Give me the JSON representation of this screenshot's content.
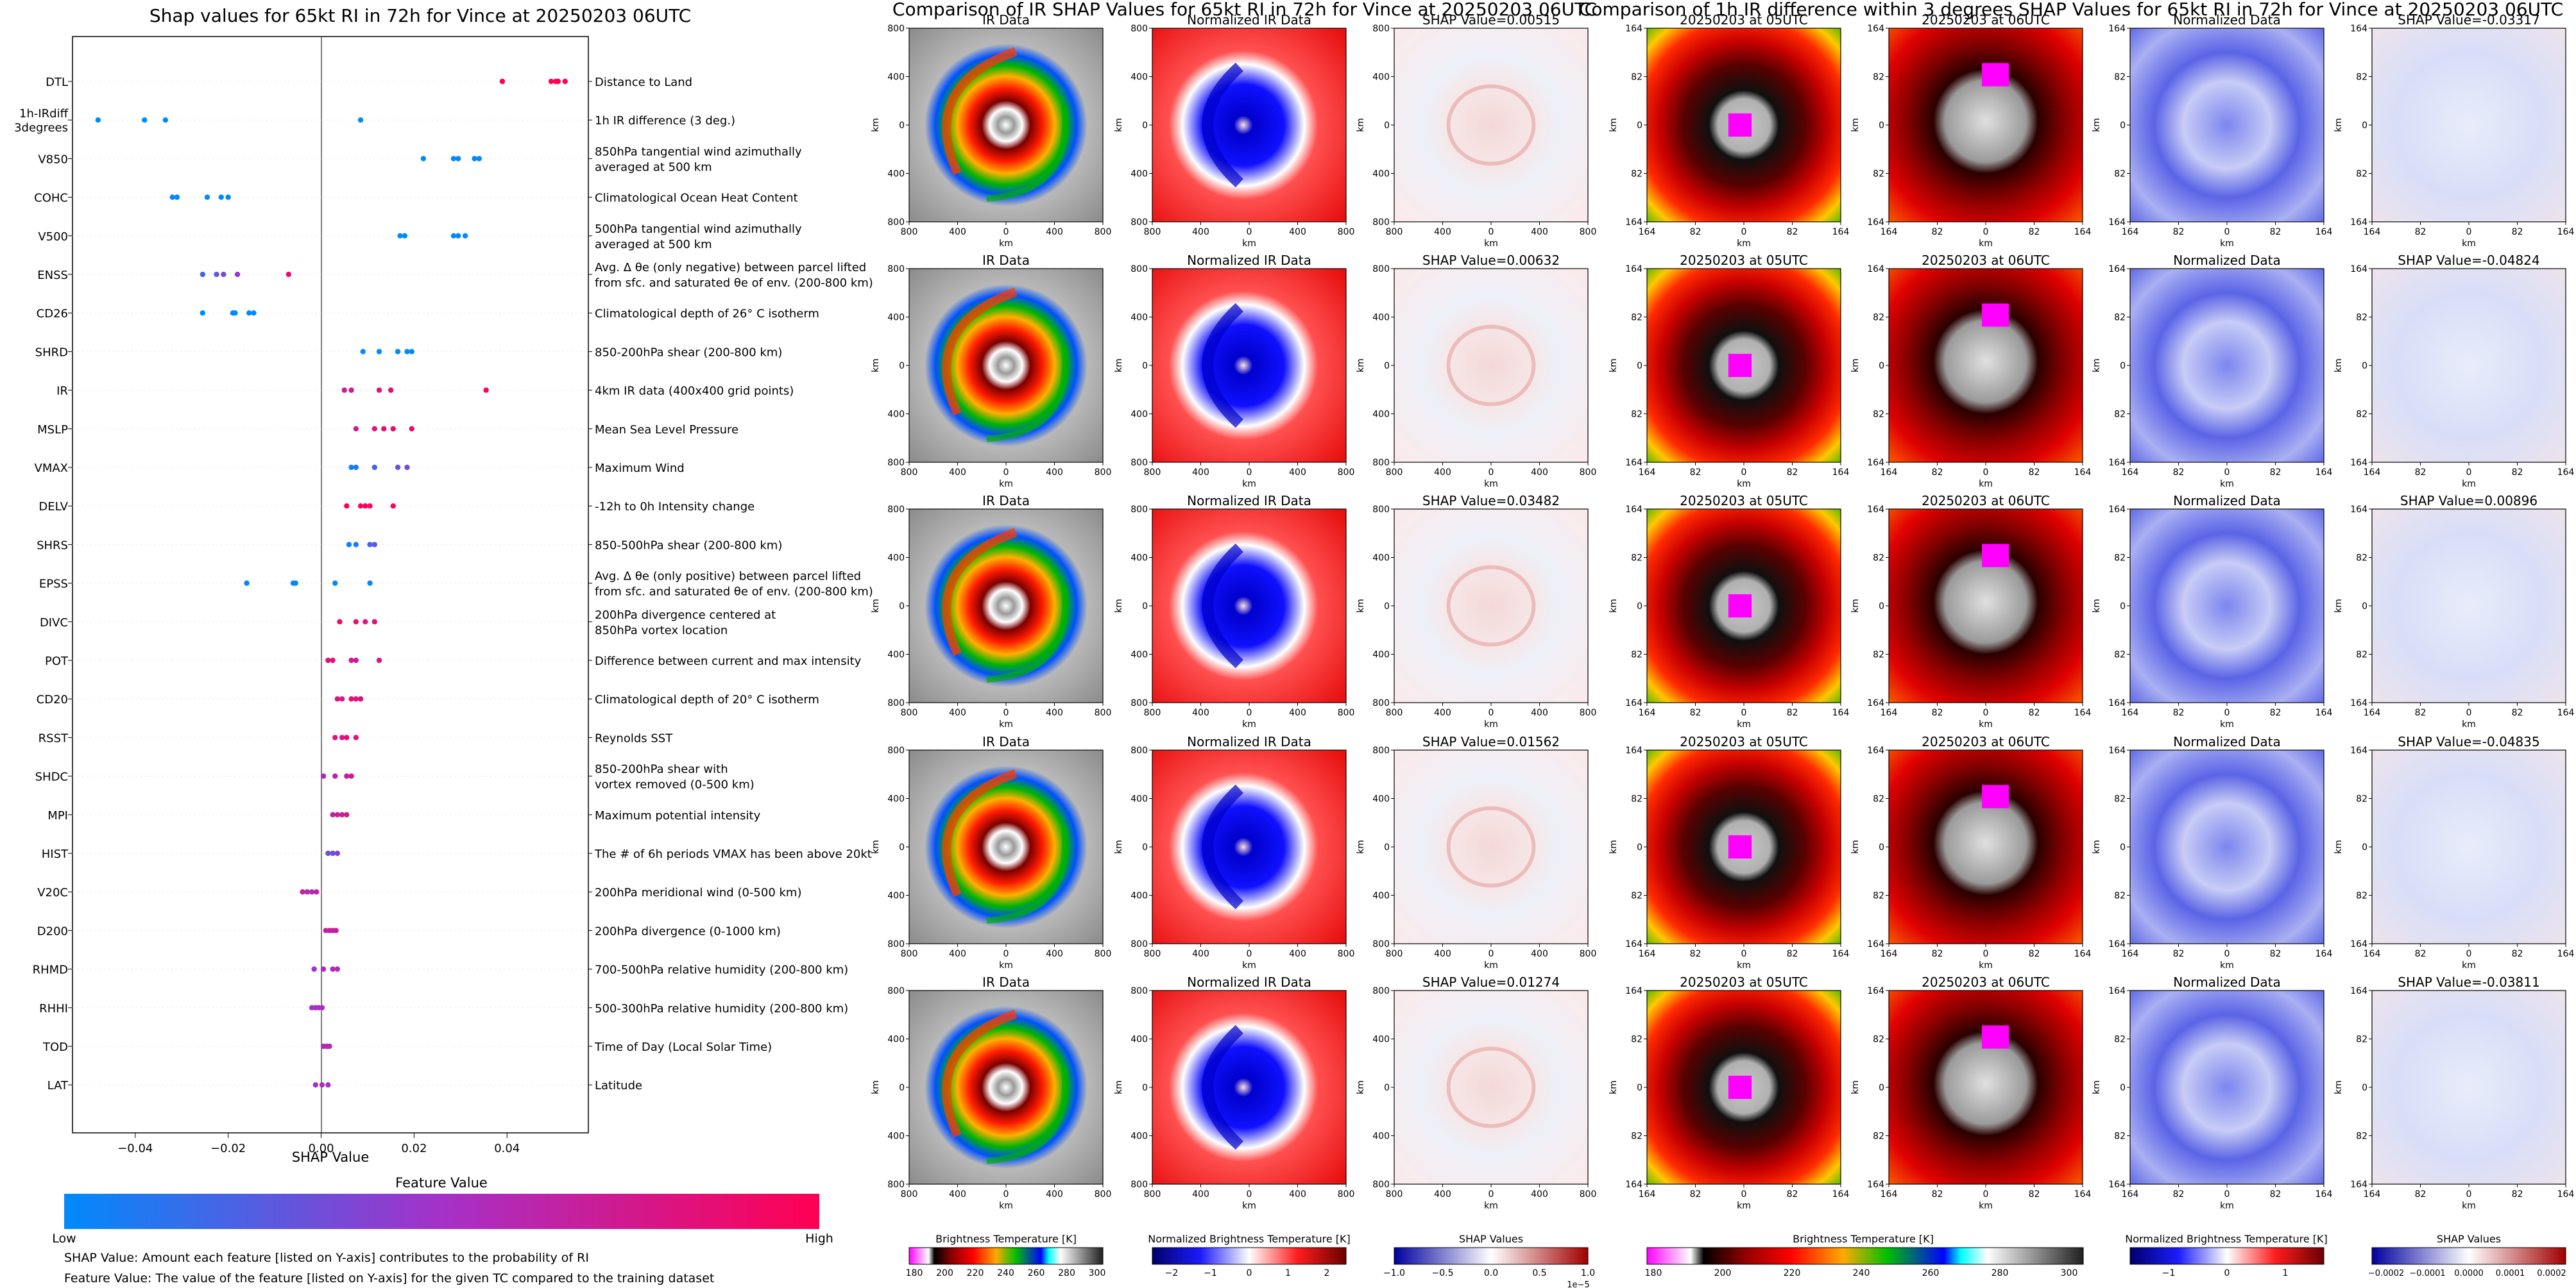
{
  "colors": {
    "feature_low": "#008afb",
    "feature_high": "#ff0052",
    "feature_mid": "#a531c8"
  },
  "shap_panel": {
    "title": "Shap values for 65kt RI in 72h for Vince at 20250203 06UTC",
    "xlabel": "SHAP Value",
    "colorbar_title": "Feature Value",
    "colorbar_low": "Low",
    "colorbar_high": "High",
    "note_1": "SHAP Value: Amount each feature [listed on Y-axis] contributes to the probability of RI",
    "note_2": "Feature Value: The value of the feature [listed on Y-axis] for the given TC compared to the training dataset"
  },
  "ir_panel": {
    "title": "Comparison of IR SHAP Values for 65kt RI in 72h for Vince at 20250203 06UTC",
    "col_titles": [
      "IR Data",
      "Normalized IR Data"
    ],
    "shap_titles": [
      "SHAP Value=0.00515",
      "SHAP Value=0.00632",
      "SHAP Value=0.03482",
      "SHAP Value=0.01562",
      "SHAP Value=0.01274"
    ],
    "axis_label": "km",
    "ticks": [
      "800",
      "400",
      "0",
      "400",
      "800"
    ],
    "cbar1_label": "Brightness Temperature [K]",
    "cbar1_ticks": [
      "180",
      "200",
      "220",
      "240",
      "260",
      "280",
      "300"
    ],
    "cbar2_label": "Normalized Brightness Temperature [K]",
    "cbar2_ticks": [
      "−2",
      "−1",
      "0",
      "1",
      "2"
    ],
    "cbar3_label": "SHAP Values",
    "cbar3_ticks": [
      "−1.0",
      "−0.5",
      "0.0",
      "0.5",
      "1.0"
    ],
    "cbar3_exp": "1e−5"
  },
  "diff_panel": {
    "title": "Comparison of 1h IR difference within 3 degrees SHAP Values for 65kt RI in 72h for Vince at 20250203 06UTC",
    "col_titles": [
      "20250203 at 05UTC",
      "20250203 at 06UTC",
      "Normalized Data"
    ],
    "shap_titles": [
      "SHAP Value=-0.03317",
      "SHAP Value=-0.04824",
      "SHAP Value=0.00896",
      "SHAP Value=-0.04835",
      "SHAP Value=-0.03811"
    ],
    "axis_label": "km",
    "ticks": [
      "164",
      "82",
      "0",
      "82",
      "164"
    ],
    "cbar1_label": "Brightness Temperature [K]",
    "cbar1_ticks": [
      "180",
      "200",
      "220",
      "240",
      "260",
      "280",
      "300"
    ],
    "cbar2_label": "Normalized Brightness Temperature [K]",
    "cbar2_ticks": [
      "−1",
      "0",
      "1"
    ],
    "cbar3_label": "SHAP Values",
    "cbar3_ticks": [
      "−0.0002",
      "−0.0001",
      "0.0000",
      "0.0001",
      "0.0002"
    ]
  },
  "chart_data": {
    "type": "scatter",
    "title": "Shap values for 65kt RI in 72h for Vince at 20250203 06UTC",
    "xlabel": "SHAP Value",
    "ylabel": "",
    "xlim": [
      -0.0535,
      0.0575
    ],
    "xticks": [
      -0.04,
      -0.02,
      0.0,
      0.02,
      0.04
    ],
    "xtick_labels": [
      "−0.04",
      "−0.02",
      "0.00",
      "0.02",
      "0.04"
    ],
    "grid": false,
    "features": [
      {
        "code": "DTL",
        "desc": [
          "Distance to Land"
        ],
        "points": [
          [
            0.039,
            1
          ],
          [
            0.0495,
            1
          ],
          [
            0.0505,
            1
          ],
          [
            0.051,
            1
          ],
          [
            0.0525,
            1
          ]
        ]
      },
      {
        "code": "1h-IRdiff|3degrees",
        "desc": [
          "1h IR difference (3 deg.)"
        ],
        "points": [
          [
            -0.048,
            0
          ],
          [
            -0.038,
            0
          ],
          [
            -0.0335,
            0
          ],
          [
            0.0085,
            0
          ]
        ]
      },
      {
        "code": "V850",
        "desc": [
          "850hPa tangential wind azimuthally",
          "averaged at 500 km"
        ],
        "points": [
          [
            0.022,
            0
          ],
          [
            0.0285,
            0
          ],
          [
            0.0295,
            0
          ],
          [
            0.033,
            0
          ],
          [
            0.034,
            0
          ]
        ]
      },
      {
        "code": "COHC",
        "desc": [
          "Climatological Ocean Heat Content"
        ],
        "points": [
          [
            -0.032,
            0
          ],
          [
            -0.031,
            0
          ],
          [
            -0.0245,
            0
          ],
          [
            -0.0215,
            0
          ],
          [
            -0.02,
            0
          ]
        ]
      },
      {
        "code": "V500",
        "desc": [
          "500hPa tangential wind azimuthally",
          "averaged at 500 km"
        ],
        "points": [
          [
            0.017,
            0
          ],
          [
            0.018,
            0
          ],
          [
            0.0285,
            0
          ],
          [
            0.0295,
            0
          ],
          [
            0.031,
            0
          ]
        ]
      },
      {
        "code": "ENSS",
        "desc": [
          "Avg. Δ θe (only negative) between parcel lifted",
          "from sfc. and saturated θe of env. (200-800 km)"
        ],
        "points": [
          [
            -0.0255,
            0.2
          ],
          [
            -0.0225,
            0.3
          ],
          [
            -0.021,
            0.35
          ],
          [
            -0.018,
            0.45
          ],
          [
            -0.007,
            0.85
          ]
        ]
      },
      {
        "code": "CD26",
        "desc": [
          "Climatological depth of 26° C isotherm"
        ],
        "points": [
          [
            -0.0255,
            0
          ],
          [
            -0.019,
            0
          ],
          [
            -0.0185,
            0
          ],
          [
            -0.0155,
            0
          ],
          [
            -0.0145,
            0
          ]
        ]
      },
      {
        "code": "SHRD",
        "desc": [
          "850-200hPa shear (200-800 km)"
        ],
        "points": [
          [
            0.009,
            0
          ],
          [
            0.0125,
            0
          ],
          [
            0.0165,
            0
          ],
          [
            0.0185,
            0
          ],
          [
            0.0195,
            0
          ]
        ]
      },
      {
        "code": "IR",
        "desc": [
          "4km IR data (400x400 grid points)"
        ],
        "points": [
          [
            0.005,
            0.7
          ],
          [
            0.0065,
            0.75
          ],
          [
            0.0125,
            0.8
          ],
          [
            0.015,
            0.85
          ],
          [
            0.0355,
            1
          ]
        ]
      },
      {
        "code": "MSLP",
        "desc": [
          "Mean Sea Level Pressure"
        ],
        "points": [
          [
            0.0075,
            0.75
          ],
          [
            0.0115,
            0.8
          ],
          [
            0.0135,
            0.85
          ],
          [
            0.0155,
            0.9
          ],
          [
            0.0195,
            0.95
          ]
        ]
      },
      {
        "code": "VMAX",
        "desc": [
          "Maximum Wind"
        ],
        "points": [
          [
            0.0065,
            0.05
          ],
          [
            0.0075,
            0.1
          ],
          [
            0.0115,
            0.2
          ],
          [
            0.0165,
            0.3
          ],
          [
            0.0185,
            0.35
          ]
        ]
      },
      {
        "code": "DELV",
        "desc": [
          "-12h to 0h Intensity change"
        ],
        "points": [
          [
            0.0055,
            1
          ],
          [
            0.0085,
            0.95
          ],
          [
            0.0095,
            0.95
          ],
          [
            0.0105,
            0.9
          ],
          [
            0.0155,
            0.95
          ]
        ]
      },
      {
        "code": "SHRS",
        "desc": [
          "850-500hPa shear (200-800 km)"
        ],
        "points": [
          [
            0.006,
            0.05
          ],
          [
            0.0075,
            0.1
          ],
          [
            0.0105,
            0.2
          ],
          [
            0.0115,
            0.3
          ]
        ]
      },
      {
        "code": "EPSS",
        "desc": [
          "Avg. Δ θe (only positive) between parcel lifted",
          "from sfc. and saturated θe of env. (200-800 km)"
        ],
        "points": [
          [
            -0.016,
            0
          ],
          [
            -0.006,
            0
          ],
          [
            -0.0055,
            0
          ],
          [
            0.003,
            0
          ],
          [
            0.0105,
            0
          ]
        ]
      },
      {
        "code": "DIVC",
        "desc": [
          "200hPa divergence centered at",
          "850hPa vortex location"
        ],
        "points": [
          [
            0.004,
            0.9
          ],
          [
            0.0075,
            0.85
          ],
          [
            0.0095,
            0.8
          ],
          [
            0.0115,
            0.85
          ]
        ]
      },
      {
        "code": "POT",
        "desc": [
          "Difference between current and max intensity"
        ],
        "points": [
          [
            0.0015,
            0.85
          ],
          [
            0.0025,
            0.8
          ],
          [
            0.0065,
            0.75
          ],
          [
            0.0075,
            0.7
          ],
          [
            0.0125,
            0.8
          ]
        ]
      },
      {
        "code": "CD20",
        "desc": [
          "Climatological depth of 20° C isotherm"
        ],
        "points": [
          [
            0.0035,
            0.8
          ],
          [
            0.0045,
            0.75
          ],
          [
            0.0065,
            0.85
          ],
          [
            0.0075,
            0.8
          ],
          [
            0.0085,
            0.85
          ]
        ]
      },
      {
        "code": "RSST",
        "desc": [
          "Reynolds SST"
        ],
        "points": [
          [
            0.003,
            0.8
          ],
          [
            0.0045,
            0.75
          ],
          [
            0.0055,
            0.85
          ],
          [
            0.0075,
            0.8
          ]
        ]
      },
      {
        "code": "SHDC",
        "desc": [
          "850-200hPa shear with",
          "vortex removed (0-500 km)"
        ],
        "points": [
          [
            0.0005,
            0.6
          ],
          [
            0.003,
            0.65
          ],
          [
            0.0055,
            0.7
          ],
          [
            0.0065,
            0.75
          ]
        ]
      },
      {
        "code": "MPI",
        "desc": [
          "Maximum potential intensity"
        ],
        "points": [
          [
            0.0025,
            0.65
          ],
          [
            0.0035,
            0.7
          ],
          [
            0.0045,
            0.7
          ],
          [
            0.0055,
            0.75
          ]
        ]
      },
      {
        "code": "HIST",
        "desc": [
          "The # of 6h periods VMAX has been above 20kt"
        ],
        "points": [
          [
            0.0015,
            0.3
          ],
          [
            0.0025,
            0.35
          ],
          [
            0.0035,
            0.4
          ]
        ]
      },
      {
        "code": "V20C",
        "desc": [
          "200hPa meridional wind (0-500 km)"
        ],
        "points": [
          [
            -0.004,
            0.65
          ],
          [
            -0.003,
            0.6
          ],
          [
            -0.002,
            0.6
          ],
          [
            -0.001,
            0.65
          ]
        ]
      },
      {
        "code": "D200",
        "desc": [
          "200hPa divergence (0-1000 km)"
        ],
        "points": [
          [
            0.001,
            0.65
          ],
          [
            0.0018,
            0.7
          ],
          [
            0.0025,
            0.65
          ],
          [
            0.0032,
            0.7
          ]
        ]
      },
      {
        "code": "RHMD",
        "desc": [
          "700-500hPa relative humidity (200-800 km)"
        ],
        "points": [
          [
            -0.0015,
            0.5
          ],
          [
            0.0005,
            0.55
          ],
          [
            0.0025,
            0.6
          ],
          [
            0.0035,
            0.55
          ]
        ]
      },
      {
        "code": "RHHI",
        "desc": [
          "500-300hPa relative humidity (200-800 km)"
        ],
        "points": [
          [
            -0.002,
            0.5
          ],
          [
            -0.0012,
            0.55
          ],
          [
            -0.0005,
            0.5
          ],
          [
            0.0002,
            0.55
          ]
        ]
      },
      {
        "code": "TOD",
        "desc": [
          "Time of Day (Local Solar Time)"
        ],
        "points": [
          [
            0.0005,
            0.55
          ],
          [
            0.0012,
            0.6
          ],
          [
            0.0018,
            0.55
          ]
        ]
      },
      {
        "code": "LAT",
        "desc": [
          "Latitude"
        ],
        "points": [
          [
            -0.0012,
            0.5
          ],
          [
            0.0002,
            0.55
          ],
          [
            0.0015,
            0.5
          ]
        ]
      }
    ]
  }
}
